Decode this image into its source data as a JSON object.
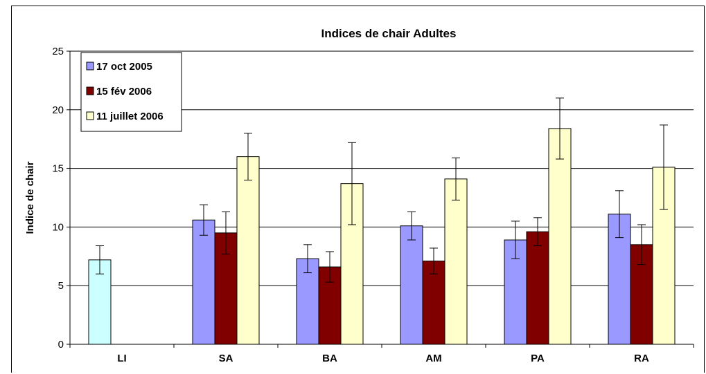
{
  "chart_data": {
    "type": "bar",
    "title": "Indices de chair Adultes",
    "xlabel": "",
    "ylabel": "Indice de chair",
    "ylim": [
      0,
      25
    ],
    "yticks": [
      "0",
      "5",
      "10",
      "15",
      "20",
      "25"
    ],
    "grid": true,
    "legend_position": "top-left",
    "categories": [
      "LI",
      "SA",
      "BA",
      "AM",
      "PA",
      "RA"
    ],
    "series": [
      {
        "name": "17 oct 2005",
        "color": "#9999ff",
        "values": [
          null,
          10.6,
          7.3,
          10.1,
          8.9,
          11.1
        ],
        "errors": [
          null,
          1.3,
          1.2,
          1.2,
          1.6,
          2.0
        ]
      },
      {
        "name": "15 fév 2006",
        "color": "#800000",
        "values": [
          null,
          9.5,
          6.6,
          7.1,
          9.6,
          8.5
        ],
        "errors": [
          null,
          1.8,
          1.3,
          1.1,
          1.2,
          1.7
        ]
      },
      {
        "name": "11 juillet 2006",
        "color": "#ffffcc",
        "values": [
          null,
          16.0,
          13.7,
          14.1,
          18.4,
          15.1
        ],
        "errors": [
          null,
          2.0,
          3.5,
          1.8,
          2.6,
          3.6
        ]
      }
    ],
    "extra_bars": [
      {
        "category": "LI",
        "color": "#ccffff",
        "value": 7.2,
        "error": 1.2
      }
    ]
  }
}
